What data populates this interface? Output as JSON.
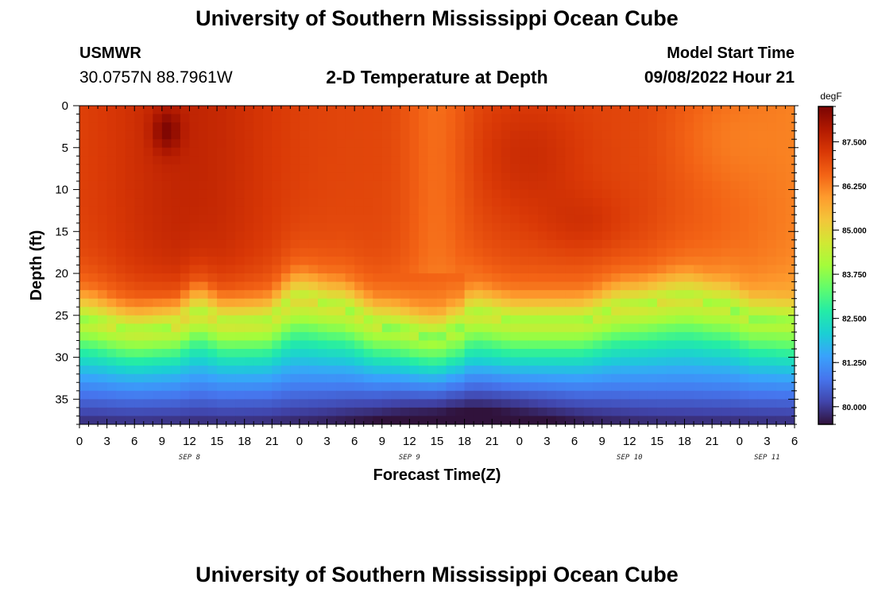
{
  "header": {
    "title": "University of Southern Mississippi Ocean Cube",
    "footer_title": "University of Southern Mississippi Ocean Cube",
    "station": "USMWR",
    "coordinates": "30.0757N  88.7961W",
    "model_start_label": "Model Start Time",
    "model_start_value": "09/08/2022 Hour 21"
  },
  "chart_data": {
    "type": "heatmap",
    "title": "2-D Temperature at Depth",
    "xlabel": "Forecast Time(Z)",
    "ylabel": "Depth (ft)",
    "xlim": [
      0,
      78
    ],
    "ylim": [
      0,
      38
    ],
    "x_ticks": [
      0,
      3,
      6,
      9,
      12,
      15,
      18,
      21,
      24,
      27,
      30,
      33,
      36,
      39,
      42,
      45,
      48,
      51,
      54,
      57,
      60,
      63,
      66,
      69,
      72,
      75,
      78
    ],
    "x_tick_labels": [
      "0",
      "3",
      "6",
      "9",
      "12",
      "15",
      "18",
      "21",
      "0",
      "3",
      "6",
      "9",
      "12",
      "15",
      "18",
      "21",
      "0",
      "3",
      "6",
      "9",
      "12",
      "15",
      "18",
      "21",
      "0",
      "3",
      "6"
    ],
    "y_ticks": [
      0,
      5,
      10,
      15,
      20,
      25,
      30,
      35
    ],
    "y_tick_labels": [
      "0",
      "5",
      "10",
      "15",
      "20",
      "25",
      "30",
      "35"
    ],
    "date_labels": [
      {
        "text": "SEP 8",
        "hour": 12
      },
      {
        "text": "SEP 9",
        "hour": 36
      },
      {
        "text": "SEP 10",
        "hour": 60
      },
      {
        "text": "SEP 11",
        "hour": 75
      }
    ],
    "colorbar": {
      "units": "degF",
      "min": 79.5,
      "max": 88.5,
      "ticks": [
        80.0,
        81.25,
        82.5,
        83.75,
        85.0,
        86.25,
        87.5
      ],
      "tick_labels": [
        "80.000",
        "81.250",
        "82.500",
        "83.750",
        "85.000",
        "86.250",
        "87.500"
      ],
      "colors": [
        "#30123b",
        "#4145ab",
        "#4675ed",
        "#39a2fc",
        "#1bcfd4",
        "#24eca6",
        "#61fc6c",
        "#a4fc3b",
        "#d1e834",
        "#f3c63a",
        "#fe9b2d",
        "#f36315",
        "#d93806",
        "#b11901",
        "#7a0402"
      ]
    },
    "thermocline_depth_ft": [
      {
        "hour": 0,
        "depth": 25.5
      },
      {
        "hour": 6,
        "depth": 27
      },
      {
        "hour": 10,
        "depth": 26.5
      },
      {
        "hour": 13,
        "depth": 24.5
      },
      {
        "hour": 16,
        "depth": 26
      },
      {
        "hour": 20,
        "depth": 26
      },
      {
        "hour": 24,
        "depth": 23
      },
      {
        "hour": 28,
        "depth": 24
      },
      {
        "hour": 33,
        "depth": 26.5
      },
      {
        "hour": 39,
        "depth": 28
      },
      {
        "hour": 41,
        "depth": 27
      },
      {
        "hour": 43,
        "depth": 25
      },
      {
        "hour": 48,
        "depth": 26
      },
      {
        "hour": 54,
        "depth": 26
      },
      {
        "hour": 60,
        "depth": 24
      },
      {
        "hour": 66,
        "depth": 23
      },
      {
        "hour": 70,
        "depth": 24
      },
      {
        "hour": 74,
        "depth": 26
      },
      {
        "hour": 78,
        "depth": 26.5
      }
    ],
    "surface_max": {
      "hour": 9.5,
      "depth": 3,
      "value": 88.5
    },
    "bottom_min": {
      "hour": 42,
      "depth": 38,
      "value": 79.5
    }
  }
}
